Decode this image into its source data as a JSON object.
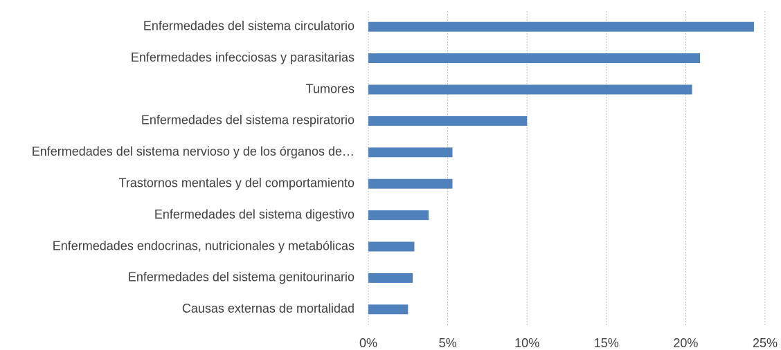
{
  "chart_data": {
    "type": "hbar",
    "categories": [
      "Enfermedades del sistema circulatorio",
      "Enfermedades infecciosas y parasitarias",
      "Tumores",
      "Enfermedades del sistema respiratorio",
      "Enfermedades del sistema nervioso y de los órganos de…",
      "Trastornos mentales y del comportamiento",
      "Enfermedades del sistema digestivo",
      "Enfermedades endocrinas, nutricionales y metabólicas",
      "Enfermedades del sistema genitourinario",
      "Causas externas de mortalidad"
    ],
    "values": [
      24.3,
      20.9,
      20.4,
      10.0,
      5.3,
      5.3,
      3.8,
      2.9,
      2.8,
      2.5
    ],
    "color": "#4f81bd",
    "xlim": [
      0,
      25
    ],
    "xticks": [
      {
        "value": 0,
        "label": "0%"
      },
      {
        "value": 5,
        "label": "5%"
      },
      {
        "value": 10,
        "label": "10%"
      },
      {
        "value": 15,
        "label": "15%"
      },
      {
        "value": 20,
        "label": "20%"
      },
      {
        "value": 25,
        "label": "25%"
      }
    ],
    "grid": true
  }
}
